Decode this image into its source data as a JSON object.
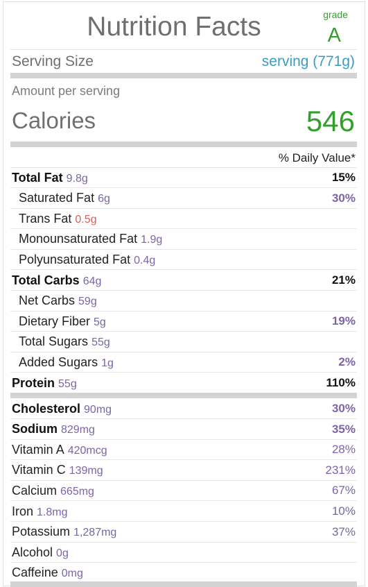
{
  "header": {
    "title": "Nutrition Facts",
    "grade_label": "grade",
    "grade_value": "A"
  },
  "serving": {
    "label": "Serving Size",
    "value": "serving (771g)"
  },
  "amount": {
    "label": "Amount per serving"
  },
  "calories": {
    "label": "Calories",
    "value": "546"
  },
  "daily_value_header": "% Daily Value*",
  "nutrients": [
    {
      "name": "Total Fat",
      "amount": "9.8g",
      "pct": "15%",
      "bold": true,
      "indent": false
    },
    {
      "name": "Saturated Fat",
      "amount": "6g",
      "pct": "30%",
      "bold": false,
      "indent": true
    },
    {
      "name": "Trans Fat",
      "amount": "0.5g",
      "pct": "",
      "bold": false,
      "indent": true
    },
    {
      "name": "Monounsaturated Fat",
      "amount": "1.9g",
      "pct": "",
      "bold": false,
      "indent": true
    },
    {
      "name": "Polyunsaturated Fat",
      "amount": "0.4g",
      "pct": "",
      "bold": false,
      "indent": true
    },
    {
      "name": "Total Carbs",
      "amount": "64g",
      "pct": "21%",
      "bold": true,
      "indent": false
    },
    {
      "name": "Net Carbs",
      "amount": "59g",
      "pct": "",
      "bold": false,
      "indent": true
    },
    {
      "name": "Dietary Fiber",
      "amount": "5g",
      "pct": "19%",
      "bold": false,
      "indent": true
    },
    {
      "name": "Total Sugars",
      "amount": "55g",
      "pct": "",
      "bold": false,
      "indent": true
    },
    {
      "name": "Added Sugars",
      "amount": "1g",
      "pct": "2%",
      "bold": false,
      "indent": true
    },
    {
      "name": "Protein",
      "amount": "55g",
      "pct": "110%",
      "bold": true,
      "indent": false
    }
  ],
  "minerals": [
    {
      "name": "Cholesterol",
      "amount": "90mg",
      "pct": "30%",
      "bold": true
    },
    {
      "name": "Sodium",
      "amount": "829mg",
      "pct": "35%",
      "bold": true
    },
    {
      "name": "Vitamin A",
      "amount": "420mcg",
      "pct": "28%",
      "bold": false
    },
    {
      "name": "Vitamin C",
      "amount": "139mg",
      "pct": "231%",
      "bold": false
    },
    {
      "name": "Calcium",
      "amount": "665mg",
      "pct": "67%",
      "bold": false
    },
    {
      "name": "Iron",
      "amount": "1.8mg",
      "pct": "10%",
      "bold": false
    },
    {
      "name": "Potassium",
      "amount": "1,287mg",
      "pct": "37%",
      "bold": false
    },
    {
      "name": "Alcohol",
      "amount": "0g",
      "pct": "",
      "bold": false
    },
    {
      "name": "Caffeine",
      "amount": "0mg",
      "pct": "",
      "bold": false
    }
  ],
  "colors": {
    "grade": "#33a02c",
    "serving": "#3c9bbf",
    "amounts": "#7b64a8",
    "trans_fat": "#e05a5a",
    "calories": "#33a02c"
  }
}
